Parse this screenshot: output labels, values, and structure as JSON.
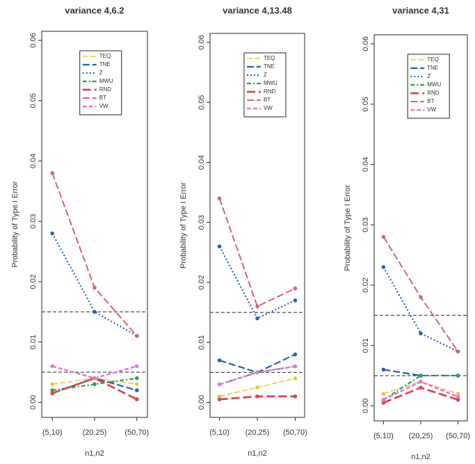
{
  "chart_data": [
    {
      "type": "line",
      "title": "variance 4,6.2",
      "x_label": "n1,n2",
      "y_label": "Probability of Type I Error",
      "categories": [
        "(5,10)",
        "(20,25)",
        "(50,70)"
      ],
      "ylim": [
        -0.0025,
        0.0615
      ],
      "yticks": [
        {
          "value": 0,
          "label": "0.00"
        },
        {
          "value": 0.01,
          "label": "0.01"
        },
        {
          "value": 0.02,
          "label": "0.02"
        },
        {
          "value": 0.03,
          "label": "0.03"
        },
        {
          "value": 0.04,
          "label": "0.04"
        },
        {
          "value": 0.05,
          "label": "0.05"
        },
        {
          "value": 0.06,
          "label": "0.06"
        }
      ],
      "reference_lines": [
        0.015,
        0.005
      ],
      "series": [
        {
          "name": "TEQ",
          "color": "#f2c23c",
          "values": [
            0.003,
            0.004,
            0.003
          ]
        },
        {
          "name": "TNE",
          "color": "#2b5fb0",
          "values": [
            0.0015,
            0.004,
            0.002
          ]
        },
        {
          "name": "Z",
          "color": "#2b5fb0",
          "values": [
            0.028,
            0.015,
            0.011
          ]
        },
        {
          "name": "MWU",
          "color": "#2e9e5a",
          "values": [
            0.002,
            0.003,
            0.004
          ]
        },
        {
          "name": "RND",
          "color": "#d94848",
          "values": [
            0.0015,
            0.004,
            0.0005
          ]
        },
        {
          "name": "BT",
          "color": "#d9607a",
          "values": [
            0.038,
            0.019,
            0.011
          ]
        },
        {
          "name": "VW",
          "color": "#e07ad0",
          "values": [
            0.006,
            0.004,
            0.006
          ]
        }
      ]
    },
    {
      "type": "line",
      "title": "variance 4,13.48",
      "x_label": "n1,n2",
      "y_label": "Probability of Type I Error",
      "categories": [
        "(5,10)",
        "(20,25)",
        "(50,70)"
      ],
      "ylim": [
        -0.0025,
        0.0615
      ],
      "yticks": [
        {
          "value": 0,
          "label": "0.00"
        },
        {
          "value": 0.01,
          "label": "0.01"
        },
        {
          "value": 0.02,
          "label": "0.02"
        },
        {
          "value": 0.03,
          "label": "0.03"
        },
        {
          "value": 0.04,
          "label": "0.04"
        },
        {
          "value": 0.05,
          "label": "0.05"
        },
        {
          "value": 0.06,
          "label": "0.06"
        }
      ],
      "reference_lines": [
        0.015,
        0.005
      ],
      "series": [
        {
          "name": "TEQ",
          "color": "#f2c23c",
          "values": [
            0.001,
            0.0025,
            0.004
          ]
        },
        {
          "name": "TNE",
          "color": "#2b5fb0",
          "values": [
            0.007,
            0.005,
            0.008
          ]
        },
        {
          "name": "Z",
          "color": "#2b5fb0",
          "values": [
            0.026,
            0.014,
            0.017
          ]
        },
        {
          "name": "MWU",
          "color": "#2e9e5a",
          "values": [
            0.003,
            0.005,
            0.006
          ]
        },
        {
          "name": "RND",
          "color": "#d94848",
          "values": [
            0.0005,
            0.001,
            0.001
          ]
        },
        {
          "name": "BT",
          "color": "#d9607a",
          "values": [
            0.034,
            0.016,
            0.019
          ]
        },
        {
          "name": "VW",
          "color": "#e07ad0",
          "values": [
            0.003,
            0.005,
            0.006
          ]
        }
      ]
    },
    {
      "type": "line",
      "title": "variance 4,31",
      "x_label": "n1,n2",
      "y_label": "Probability of Type I Error",
      "categories": [
        "(5,10)",
        "(20,25)",
        "(50,70)"
      ],
      "ylim": [
        -0.0025,
        0.0615
      ],
      "yticks": [
        {
          "value": 0,
          "label": "0.00"
        },
        {
          "value": 0.01,
          "label": "0.01"
        },
        {
          "value": 0.02,
          "label": "0.02"
        },
        {
          "value": 0.03,
          "label": "0.03"
        },
        {
          "value": 0.04,
          "label": "0.04"
        },
        {
          "value": 0.05,
          "label": "0.05"
        },
        {
          "value": 0.06,
          "label": "0.06"
        }
      ],
      "reference_lines": [
        0.015,
        0.005
      ],
      "series": [
        {
          "name": "TEQ",
          "color": "#f2c23c",
          "values": [
            0.002,
            0.004,
            0.002
          ]
        },
        {
          "name": "TNE",
          "color": "#2b5fb0",
          "values": [
            0.006,
            0.005,
            0.005
          ]
        },
        {
          "name": "Z",
          "color": "#2b5fb0",
          "values": [
            0.023,
            0.012,
            0.009
          ]
        },
        {
          "name": "MWU",
          "color": "#2e9e5a",
          "values": [
            0.001,
            0.005,
            0.005
          ]
        },
        {
          "name": "RND",
          "color": "#d94848",
          "values": [
            0.0005,
            0.003,
            0.001
          ]
        },
        {
          "name": "BT",
          "color": "#d9607a",
          "values": [
            0.028,
            0.018,
            0.009
          ]
        },
        {
          "name": "VW",
          "color": "#e07ad0",
          "values": [
            0.001,
            0.004,
            0.0015
          ]
        }
      ]
    }
  ]
}
